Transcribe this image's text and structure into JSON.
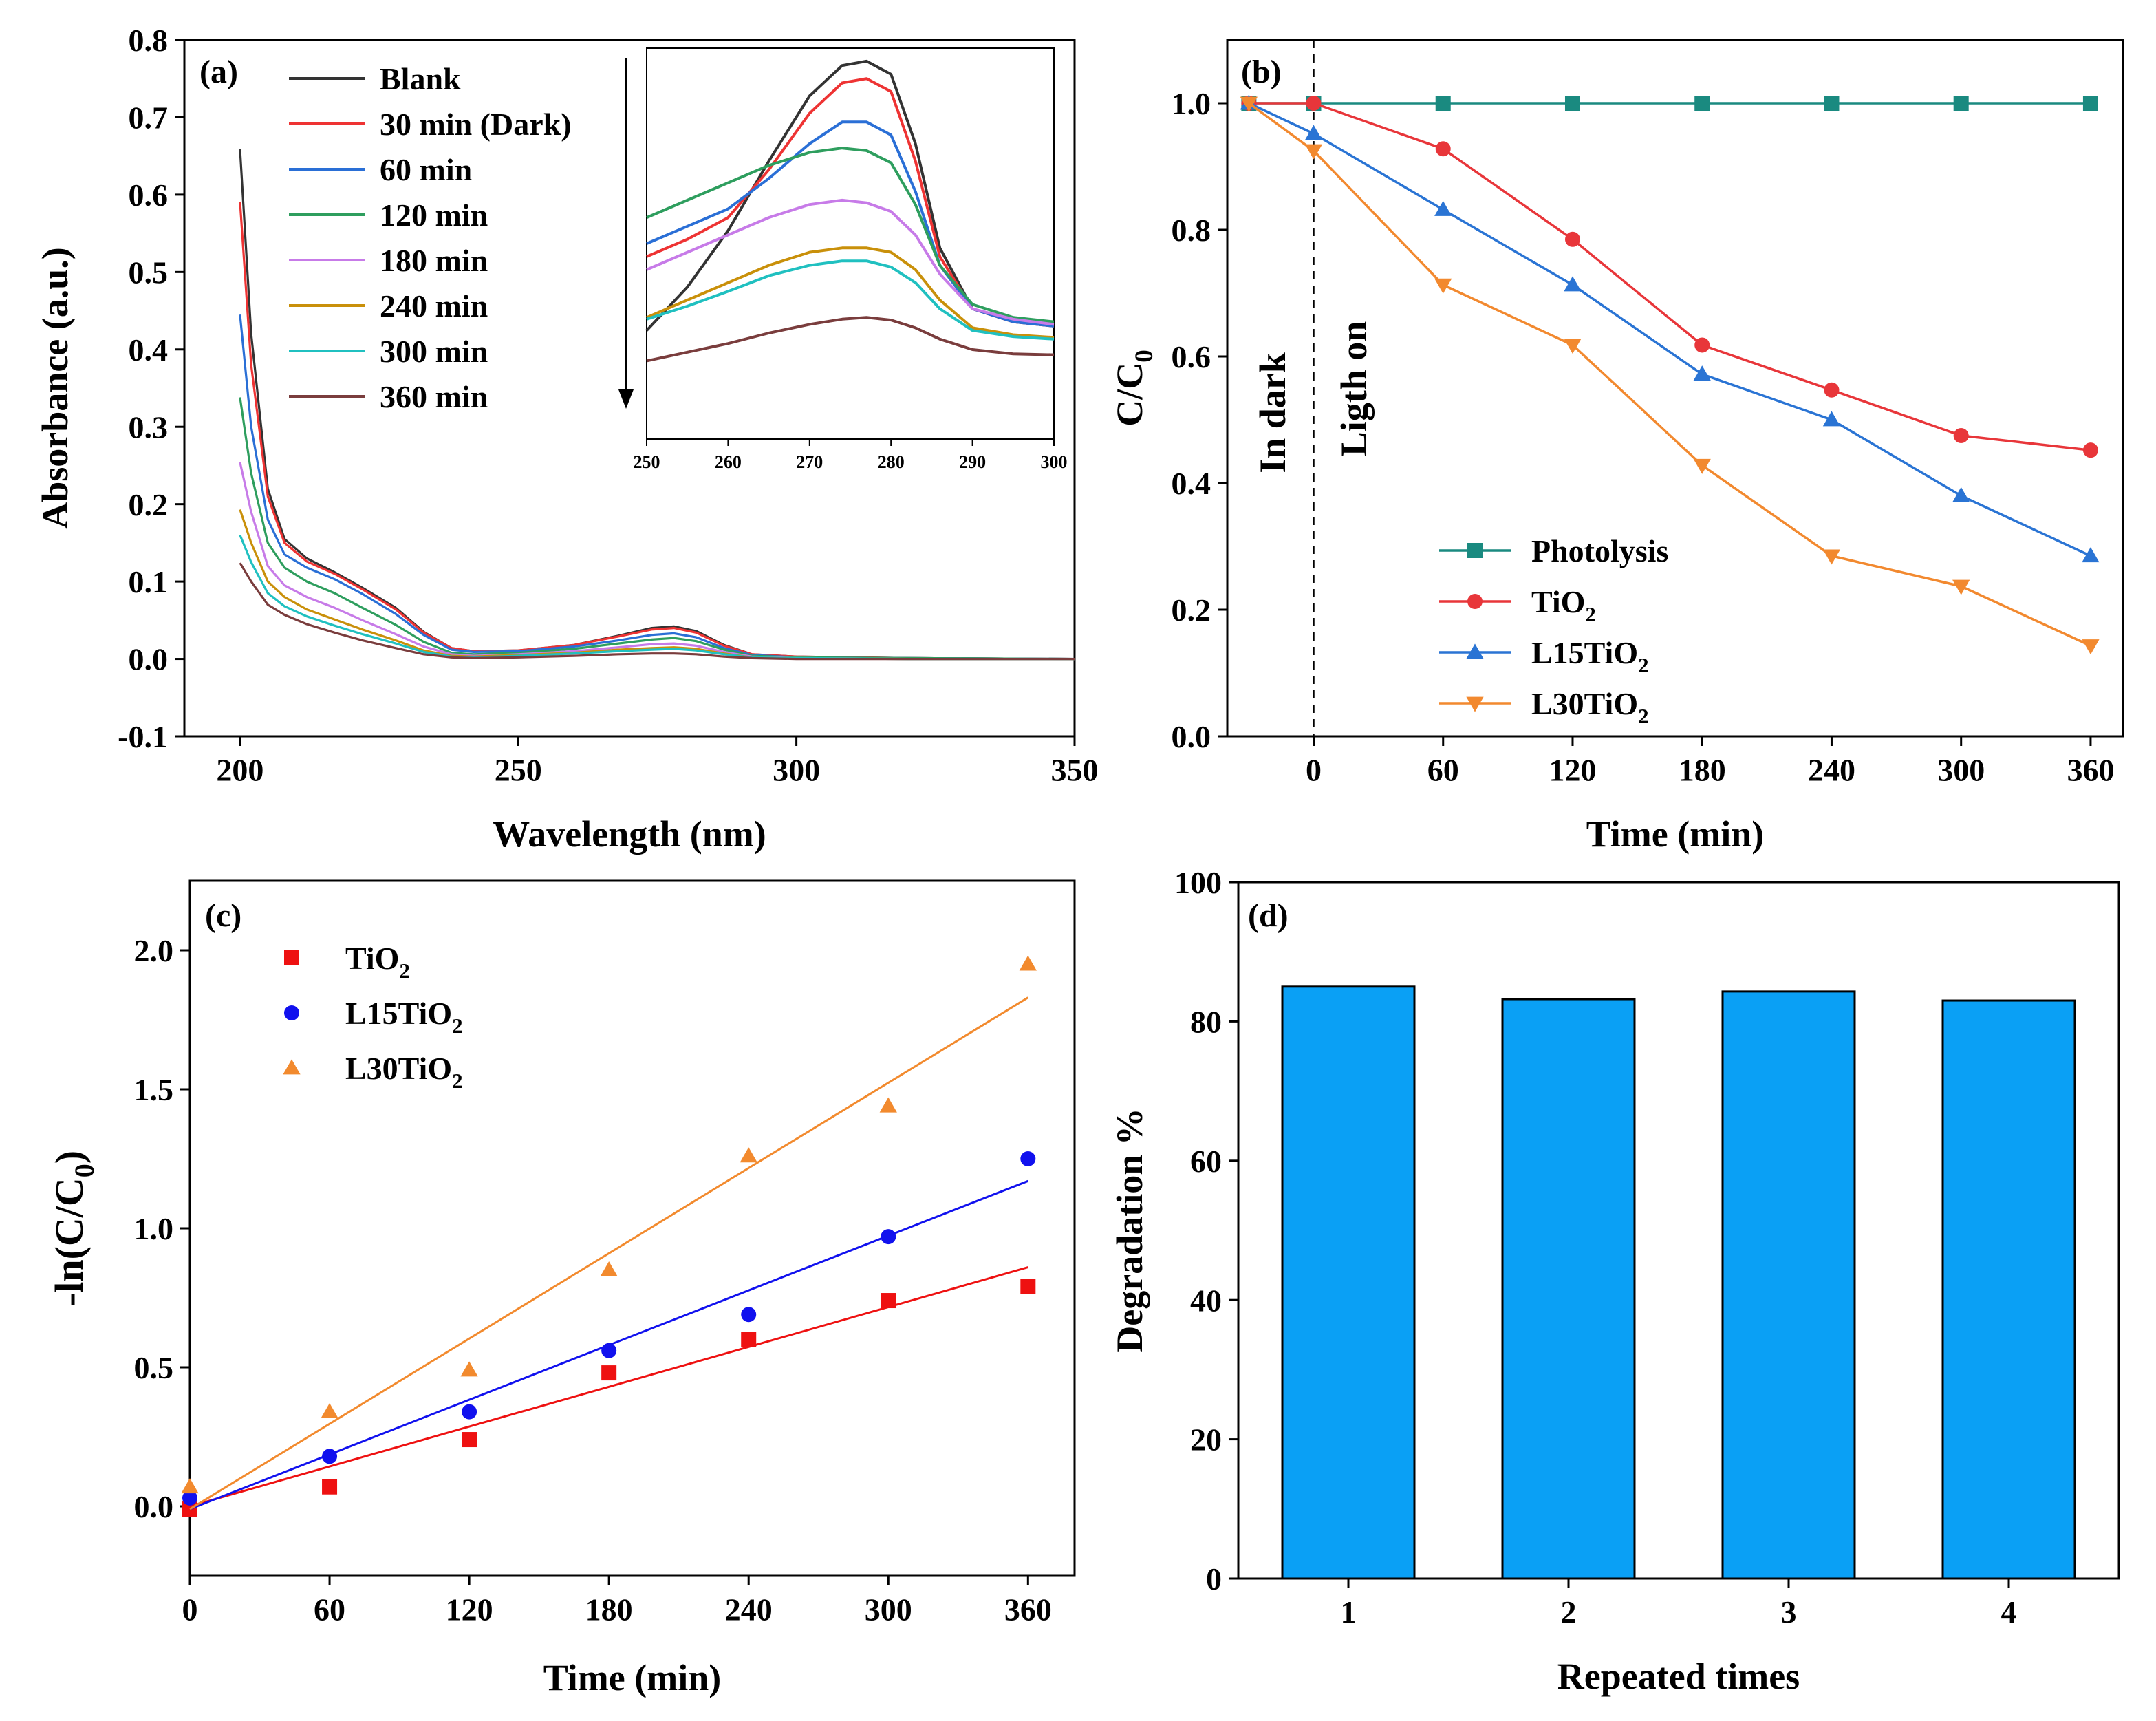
{
  "chart_data": [
    {
      "id": "a",
      "type": "line",
      "panel_label": "(a)",
      "title": "",
      "xlabel": "Wavelength (nm)",
      "ylabel": "Absorbance (a.u.)",
      "xlim": [
        190,
        350
      ],
      "ylim": [
        -0.1,
        0.8
      ],
      "xticks": [
        200,
        250,
        300,
        350
      ],
      "yticks": [
        -0.1,
        0.0,
        0.1,
        0.2,
        0.3,
        0.4,
        0.5,
        0.6,
        0.7,
        0.8
      ],
      "legend_position": "top-left",
      "x": [
        200,
        202,
        205,
        208,
        212,
        217,
        222,
        228,
        233,
        238,
        242,
        250,
        260,
        268,
        274,
        278,
        282,
        287,
        292,
        300,
        320,
        350
      ],
      "series": [
        {
          "name": "Blank",
          "color": "#333333",
          "values": [
            0.659,
            0.42,
            0.22,
            0.155,
            0.13,
            0.112,
            0.092,
            0.066,
            0.035,
            0.014,
            0.01,
            0.011,
            0.018,
            0.03,
            0.04,
            0.042,
            0.036,
            0.018,
            0.006,
            0.003,
            0.001,
            0.0
          ]
        },
        {
          "name": "30 min (Dark)",
          "color": "#ee3333",
          "values": [
            0.591,
            0.38,
            0.21,
            0.15,
            0.126,
            0.11,
            0.09,
            0.064,
            0.034,
            0.014,
            0.01,
            0.011,
            0.018,
            0.029,
            0.038,
            0.04,
            0.034,
            0.017,
            0.006,
            0.003,
            0.001,
            0.0
          ]
        },
        {
          "name": "60 min",
          "color": "#2a6fd6",
          "values": [
            0.445,
            0.3,
            0.18,
            0.135,
            0.118,
            0.103,
            0.084,
            0.058,
            0.031,
            0.012,
            0.009,
            0.01,
            0.016,
            0.024,
            0.031,
            0.033,
            0.028,
            0.014,
            0.005,
            0.002,
            0.001,
            0.0
          ]
        },
        {
          "name": "120 min",
          "color": "#2e9e5e",
          "values": [
            0.338,
            0.24,
            0.15,
            0.118,
            0.1,
            0.085,
            0.066,
            0.044,
            0.022,
            0.008,
            0.006,
            0.008,
            0.013,
            0.02,
            0.025,
            0.027,
            0.023,
            0.012,
            0.004,
            0.002,
            0.001,
            0.0
          ]
        },
        {
          "name": "180 min",
          "color": "#c77be8",
          "values": [
            0.254,
            0.19,
            0.12,
            0.095,
            0.08,
            0.066,
            0.05,
            0.032,
            0.016,
            0.006,
            0.004,
            0.006,
            0.01,
            0.015,
            0.019,
            0.02,
            0.017,
            0.009,
            0.003,
            0.001,
            0.0,
            0.0
          ]
        },
        {
          "name": "240 min",
          "color": "#c9900a",
          "values": [
            0.193,
            0.15,
            0.1,
            0.08,
            0.064,
            0.051,
            0.038,
            0.024,
            0.011,
            0.004,
            0.003,
            0.005,
            0.008,
            0.012,
            0.014,
            0.015,
            0.013,
            0.007,
            0.002,
            0.001,
            0.0,
            0.0
          ]
        },
        {
          "name": "300 min",
          "color": "#20c0c0",
          "values": [
            0.16,
            0.125,
            0.085,
            0.068,
            0.055,
            0.043,
            0.032,
            0.02,
            0.009,
            0.003,
            0.002,
            0.004,
            0.007,
            0.01,
            0.012,
            0.013,
            0.011,
            0.006,
            0.002,
            0.001,
            0.0,
            0.0
          ]
        },
        {
          "name": "360 min",
          "color": "#7a3d3d",
          "values": [
            0.124,
            0.1,
            0.07,
            0.057,
            0.045,
            0.034,
            0.024,
            0.014,
            0.006,
            0.002,
            0.001,
            0.002,
            0.004,
            0.006,
            0.007,
            0.007,
            0.006,
            0.003,
            0.001,
            0.0,
            0.0,
            0.0
          ]
        }
      ],
      "inset": {
        "xlim": [
          250,
          300
        ],
        "ylim": [
          0.0,
          0.045
        ],
        "xticks": [
          250,
          260,
          270,
          280,
          290,
          300
        ],
        "arrow": "downward arrow along left edge",
        "x": [
          250,
          255,
          260,
          265,
          270,
          274,
          277,
          280,
          283,
          286,
          290,
          295,
          300
        ],
        "series": [
          {
            "name": "Blank",
            "values": [
              0.0125,
              0.0175,
              0.024,
              0.032,
              0.0395,
              0.043,
              0.0435,
              0.042,
              0.034,
              0.022,
              0.015,
              0.0135,
              0.013
            ]
          },
          {
            "name": "30 min (Dark)",
            "values": [
              0.021,
              0.023,
              0.0255,
              0.031,
              0.0375,
              0.041,
              0.0415,
              0.04,
              0.032,
              0.021,
              0.015,
              0.0135,
              0.013
            ]
          },
          {
            "name": "60 min",
            "values": [
              0.0225,
              0.0245,
              0.0265,
              0.03,
              0.034,
              0.0365,
              0.0365,
              0.035,
              0.0285,
              0.02,
              0.015,
              0.0135,
              0.013
            ]
          },
          {
            "name": "120 min",
            "values": [
              0.0255,
              0.0275,
              0.0295,
              0.0315,
              0.033,
              0.0335,
              0.0332,
              0.0318,
              0.027,
              0.02,
              0.0155,
              0.014,
              0.0135
            ]
          },
          {
            "name": "180 min",
            "values": [
              0.0195,
              0.0215,
              0.0235,
              0.0255,
              0.027,
              0.0275,
              0.0272,
              0.0262,
              0.0235,
              0.019,
              0.015,
              0.0138,
              0.0132
            ]
          },
          {
            "name": "240 min",
            "values": [
              0.014,
              0.016,
              0.018,
              0.02,
              0.0215,
              0.022,
              0.022,
              0.0215,
              0.0195,
              0.016,
              0.0128,
              0.012,
              0.0117
            ]
          },
          {
            "name": "300 min",
            "values": [
              0.0138,
              0.0153,
              0.017,
              0.0188,
              0.02,
              0.0205,
              0.0205,
              0.0198,
              0.018,
              0.015,
              0.0125,
              0.0118,
              0.0115
            ]
          },
          {
            "name": "360 min",
            "values": [
              0.009,
              0.01,
              0.011,
              0.0122,
              0.0132,
              0.0138,
              0.014,
              0.0137,
              0.0128,
              0.0115,
              0.0103,
              0.0098,
              0.0097
            ]
          }
        ]
      }
    },
    {
      "id": "b",
      "type": "line",
      "panel_label": "(b)",
      "title": "",
      "xlabel": "Time (min)",
      "ylabel": "C/C",
      "ylabel_sub": "0",
      "xlim": [
        -40,
        375
      ],
      "ylim": [
        0.0,
        1.1
      ],
      "xticks": [
        0,
        60,
        120,
        180,
        240,
        300,
        360
      ],
      "yticks": [
        0.0,
        0.2,
        0.4,
        0.6,
        0.8,
        1.0
      ],
      "legend_position": "bottom-center",
      "annotations": [
        "In dark",
        "Ligth on"
      ],
      "x": [
        -30,
        0,
        60,
        120,
        180,
        240,
        300,
        360
      ],
      "series": [
        {
          "name": "Photolysis",
          "label_main": "Photolysis",
          "label_sub": "",
          "color": "#1a8a80",
          "marker": "square",
          "values": [
            1.0,
            1.0,
            1.0,
            1.0,
            1.0,
            1.0,
            1.0,
            1.0
          ]
        },
        {
          "name": "TiO2",
          "label_main": "TiO",
          "label_sub": "2",
          "color": "#e8363a",
          "marker": "circle",
          "values": [
            1.0,
            1.0,
            0.928,
            0.785,
            0.618,
            0.547,
            0.475,
            0.452
          ]
        },
        {
          "name": "L15TiO2",
          "label_main": "L15TiO",
          "label_sub": "2",
          "color": "#2a74d4",
          "marker": "triangle-up",
          "values": [
            1.0,
            0.952,
            0.832,
            0.713,
            0.572,
            0.5,
            0.38,
            0.285
          ]
        },
        {
          "name": "L30TiO2",
          "label_main": "L30TiO",
          "label_sub": "2",
          "color": "#f2892f",
          "marker": "triangle-down",
          "values": [
            1.0,
            0.925,
            0.713,
            0.618,
            0.428,
            0.285,
            0.237,
            0.143
          ]
        }
      ]
    },
    {
      "id": "c",
      "type": "scatter",
      "panel_label": "(c)",
      "title": "",
      "xlabel": "Time (min)",
      "ylabel": "-ln(C/C",
      "ylabel_sub": "0",
      "ylabel_end": ")",
      "xlim": [
        0,
        380
      ],
      "ylim": [
        -0.25,
        2.25
      ],
      "xticks": [
        0,
        60,
        120,
        180,
        240,
        300,
        360
      ],
      "yticks": [
        0.0,
        0.5,
        1.0,
        1.5,
        2.0
      ],
      "legend_position": "top-left",
      "x": [
        0,
        60,
        120,
        180,
        240,
        300,
        360
      ],
      "series": [
        {
          "name": "TiO2",
          "label_main": "TiO",
          "label_sub": "2",
          "color": "#ee1111",
          "marker": "square",
          "values": [
            -0.01,
            0.07,
            0.24,
            0.48,
            0.6,
            0.74,
            0.79
          ],
          "fit": [
            0.0,
            0.86
          ]
        },
        {
          "name": "L15TiO2",
          "label_main": "L15TiO",
          "label_sub": "2",
          "color": "#1111ee",
          "marker": "circle",
          "values": [
            0.03,
            0.18,
            0.34,
            0.56,
            0.69,
            0.97,
            1.25
          ],
          "fit": [
            -0.01,
            1.17
          ]
        },
        {
          "name": "L30TiO2",
          "label_main": "L30TiO",
          "label_sub": "2",
          "color": "#f28a2e",
          "marker": "triangle-up",
          "values": [
            0.07,
            0.34,
            0.49,
            0.85,
            1.26,
            1.44,
            1.95
          ],
          "fit": [
            -0.01,
            1.83
          ]
        }
      ]
    },
    {
      "id": "d",
      "type": "bar",
      "panel_label": "(d)",
      "title": "",
      "xlabel": "Repeated times",
      "ylabel": "Degradation %",
      "categories": [
        "1",
        "2",
        "3",
        "4"
      ],
      "values": [
        85.0,
        83.2,
        84.3,
        83.0
      ],
      "color": "#0aa0f5",
      "ylim": [
        0,
        100
      ],
      "yticks": [
        0,
        20,
        40,
        60,
        80,
        100
      ]
    }
  ]
}
